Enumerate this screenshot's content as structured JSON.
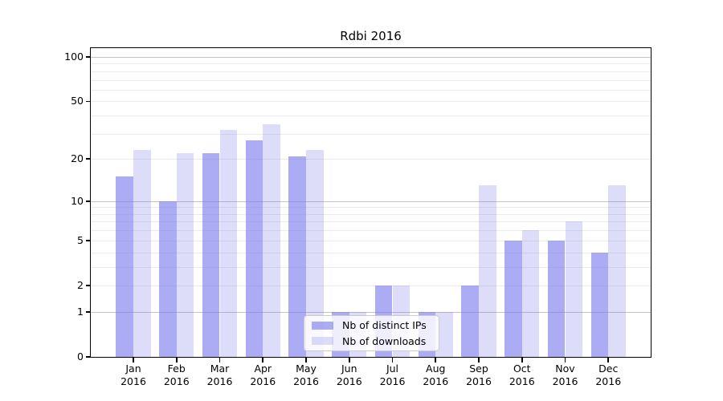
{
  "chart_data": {
    "type": "bar",
    "title": "Rdbi 2016",
    "categories": [
      "Jan",
      "Feb",
      "Mar",
      "Apr",
      "May",
      "Jun",
      "Jul",
      "Aug",
      "Sep",
      "Oct",
      "Nov",
      "Dec"
    ],
    "year_label": "2016",
    "series": [
      {
        "name": "Nb of distinct IPs",
        "values": [
          15,
          10,
          22,
          27,
          21,
          1,
          2,
          1,
          2,
          5,
          5,
          4
        ],
        "color": "rgba(121,121,237,0.62)"
      },
      {
        "name": "Nb of downloads",
        "values": [
          23,
          22,
          32,
          35,
          23,
          1,
          2,
          1,
          13,
          6,
          7,
          13
        ],
        "color": "rgba(121,121,237,0.25)"
      }
    ],
    "xlabel": "",
    "ylabel": "",
    "yscale": "log1p",
    "ylim": [
      0,
      110
    ],
    "yticks": [
      0,
      1,
      2,
      5,
      10,
      20,
      50,
      100
    ],
    "grid_major": [
      1,
      10,
      100
    ],
    "grid_minor": [
      2,
      3,
      4,
      5,
      6,
      7,
      8,
      9,
      20,
      30,
      40,
      50,
      60,
      70,
      80,
      90
    ],
    "legend_position": "lower center",
    "colors": {
      "grid_major": "#c3c3c3",
      "grid_minor": "#ebebeb",
      "axis": "#000000",
      "text": "#000000",
      "legend_border": "#cccccc",
      "legend_bg": "rgba(255,255,255,0.8)"
    }
  }
}
